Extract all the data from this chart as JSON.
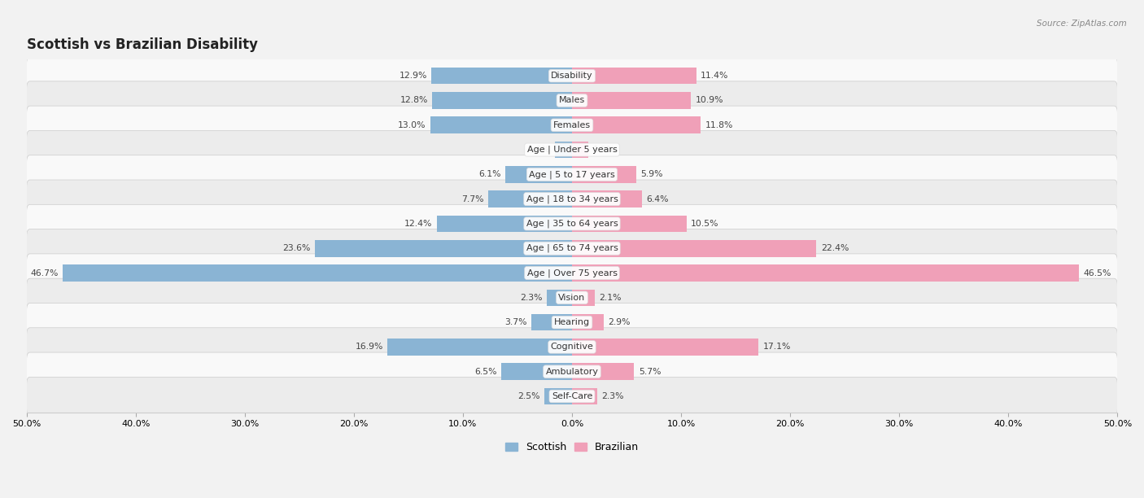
{
  "title": "Scottish vs Brazilian Disability",
  "source": "Source: ZipAtlas.com",
  "categories": [
    "Disability",
    "Males",
    "Females",
    "Age | Under 5 years",
    "Age | 5 to 17 years",
    "Age | 18 to 34 years",
    "Age | 35 to 64 years",
    "Age | 65 to 74 years",
    "Age | Over 75 years",
    "Vision",
    "Hearing",
    "Cognitive",
    "Ambulatory",
    "Self-Care"
  ],
  "scottish": [
    12.9,
    12.8,
    13.0,
    1.6,
    6.1,
    7.7,
    12.4,
    23.6,
    46.7,
    2.3,
    3.7,
    16.9,
    6.5,
    2.5
  ],
  "brazilian": [
    11.4,
    10.9,
    11.8,
    1.5,
    5.9,
    6.4,
    10.5,
    22.4,
    46.5,
    2.1,
    2.9,
    17.1,
    5.7,
    2.3
  ],
  "scottish_color": "#8ab4d4",
  "brazilian_color": "#f0a0b8",
  "scottish_dark": "#6699bb",
  "brazilian_dark": "#e87898",
  "bar_height": 0.68,
  "xlim": 50.0,
  "background_color": "#f2f2f2",
  "row_color_odd": "#f9f9f9",
  "row_color_even": "#ececec",
  "title_fontsize": 12,
  "label_fontsize": 8.0,
  "value_fontsize": 7.8,
  "axis_fontsize": 8,
  "legend_fontsize": 9
}
